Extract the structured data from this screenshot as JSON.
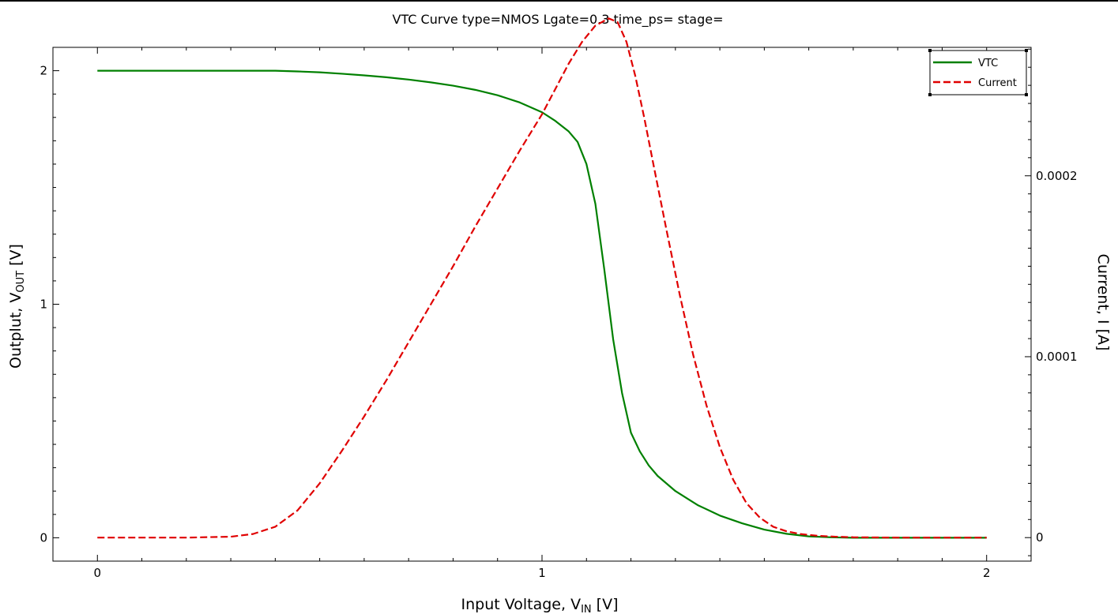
{
  "chart_data": {
    "type": "line",
    "title": "VTC Curve type=NMOS Lgate=0.3 time_ps= stage=",
    "xlabel": {
      "main": "Input Voltage, V",
      "sub": "IN",
      "unit": " [V]"
    },
    "ylabel_left": {
      "main": "Outplut, V",
      "sub": "OUT",
      "unit": " [V]"
    },
    "ylabel_right": "Current, I [A]",
    "xlim": [
      -0.1,
      2.1
    ],
    "ylim_left": [
      -0.1,
      2.1
    ],
    "ylim_right": [
      -1.3e-05,
      0.000271
    ],
    "x_ticks": [
      0,
      1,
      2
    ],
    "x_tick_labels": [
      "0",
      "1",
      "2"
    ],
    "y_left_ticks": [
      0,
      1,
      2
    ],
    "y_left_tick_labels": [
      "0",
      "1",
      "2"
    ],
    "y_right_ticks": [
      0,
      0.0001,
      0.0002
    ],
    "y_right_tick_labels": [
      "0",
      "0.0001",
      "0.0002"
    ],
    "legend_position": "top-right",
    "series": [
      {
        "name": "VTC",
        "axis": "left",
        "color": "#008000",
        "dash": "solid",
        "x": [
          0,
          0.1,
          0.2,
          0.3,
          0.4,
          0.45,
          0.5,
          0.55,
          0.6,
          0.65,
          0.7,
          0.75,
          0.8,
          0.85,
          0.9,
          0.95,
          1.0,
          1.03,
          1.06,
          1.08,
          1.1,
          1.12,
          1.14,
          1.16,
          1.18,
          1.2,
          1.22,
          1.24,
          1.26,
          1.3,
          1.35,
          1.4,
          1.45,
          1.5,
          1.55,
          1.6,
          1.65,
          1.7,
          1.8,
          1.9,
          2.0
        ],
        "y": [
          2.0,
          2.0,
          2.0,
          2.0,
          2.0,
          1.997,
          1.993,
          1.987,
          1.98,
          1.972,
          1.962,
          1.95,
          1.936,
          1.918,
          1.895,
          1.864,
          1.822,
          1.785,
          1.74,
          1.695,
          1.6,
          1.43,
          1.15,
          0.85,
          0.62,
          0.45,
          0.37,
          0.31,
          0.265,
          0.2,
          0.14,
          0.095,
          0.062,
          0.035,
          0.017,
          0.006,
          0.002,
          0.0,
          0.0,
          0.0,
          0.0
        ]
      },
      {
        "name": "Current",
        "axis": "right",
        "color": "#e00000",
        "dash": "dashed",
        "x": [
          0,
          0.1,
          0.2,
          0.3,
          0.35,
          0.4,
          0.45,
          0.5,
          0.55,
          0.6,
          0.65,
          0.7,
          0.75,
          0.8,
          0.85,
          0.9,
          0.95,
          1.0,
          1.03,
          1.06,
          1.09,
          1.12,
          1.15,
          1.17,
          1.19,
          1.21,
          1.23,
          1.25,
          1.28,
          1.31,
          1.34,
          1.37,
          1.4,
          1.43,
          1.46,
          1.49,
          1.52,
          1.55,
          1.58,
          1.62,
          1.66,
          1.7,
          1.8,
          1.9,
          2.0
        ],
        "y": [
          0,
          0,
          0,
          5e-07,
          2e-06,
          6e-06,
          1.5e-05,
          3e-05,
          4.8e-05,
          6.7e-05,
          8.7e-05,
          0.000108,
          0.000129,
          0.00015,
          0.000172,
          0.000193,
          0.000214,
          0.000234,
          0.000248,
          0.000262,
          0.000274,
          0.000283,
          0.000287,
          0.000285,
          0.000274,
          0.000255,
          0.000232,
          0.000207,
          0.00017,
          0.000134,
          0.000101,
          7.3e-05,
          5e-05,
          3.2e-05,
          1.9e-05,
          1.1e-05,
          6e-06,
          3.5e-06,
          2e-06,
          1e-06,
          5e-07,
          2e-07,
          0,
          0,
          0
        ]
      }
    ]
  }
}
